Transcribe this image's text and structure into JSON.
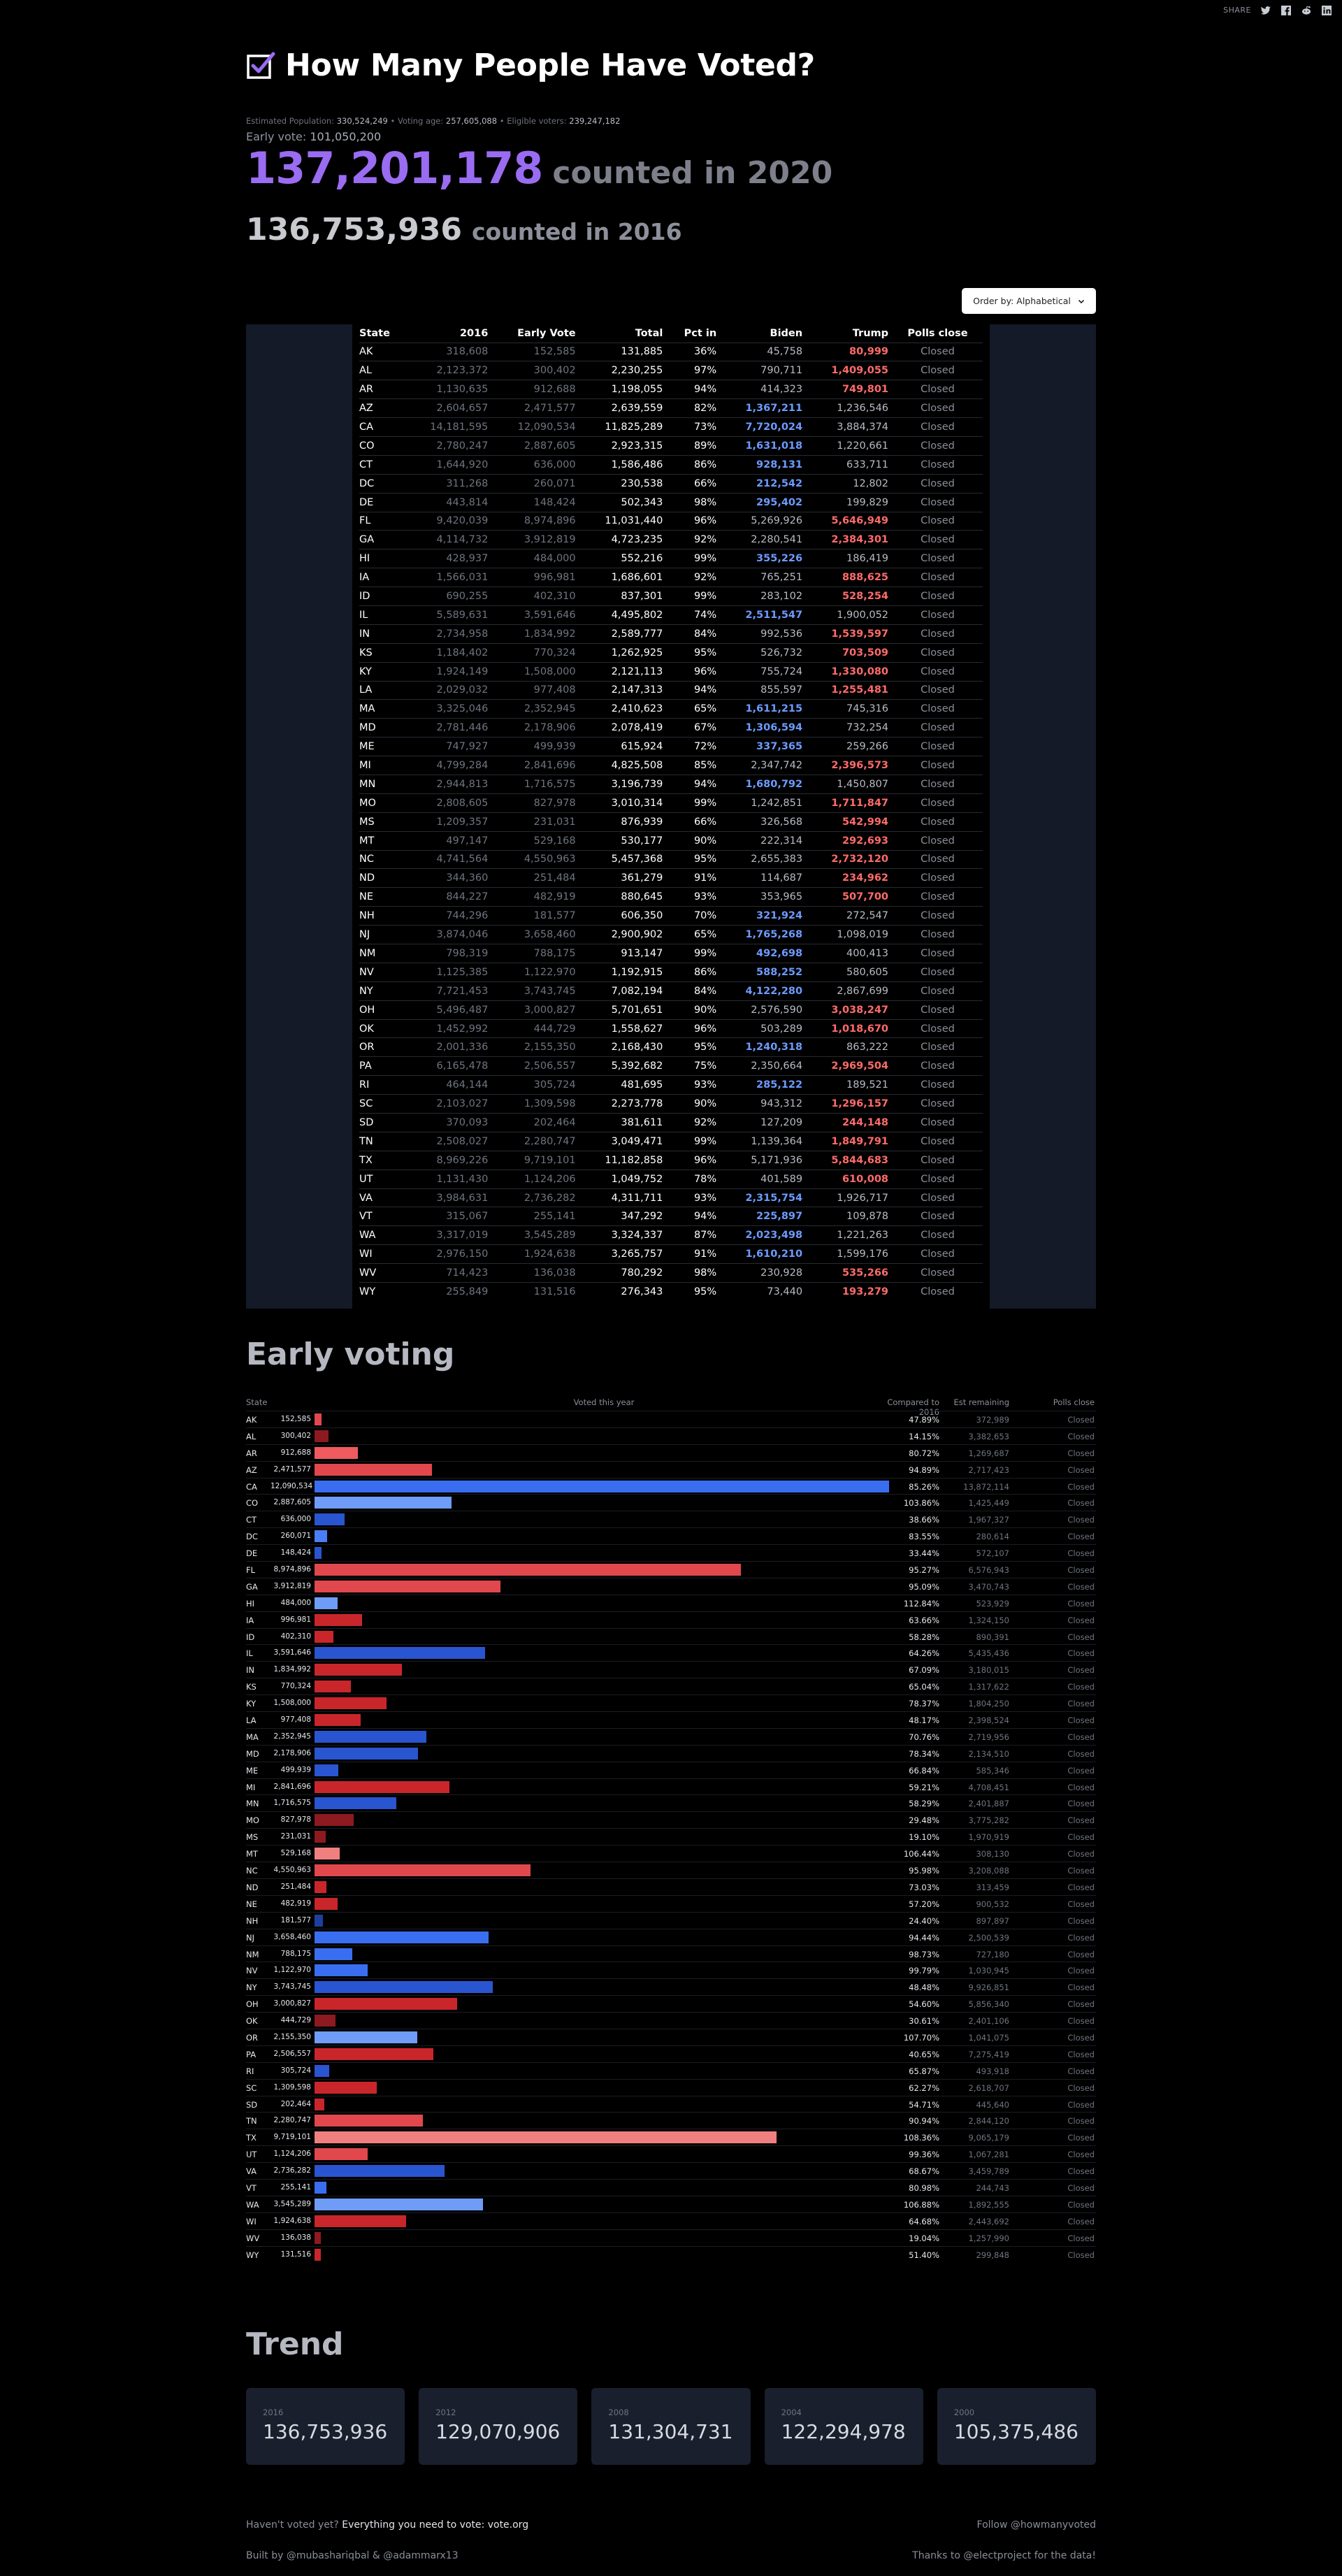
{
  "share": {
    "label": "SHARE",
    "icons": [
      "twitter-icon",
      "facebook-icon",
      "reddit-icon",
      "linkedin-icon"
    ]
  },
  "title": "How Many People Have Voted?",
  "estimates": {
    "pop_label": "Estimated Population:",
    "pop": "330,524,249",
    "age_label": "Voting age:",
    "age": "257,605,088",
    "elig_label": "Eligible voters:",
    "elig": "239,247,182"
  },
  "early_vote": {
    "label": "Early vote:",
    "value": "101,050,200"
  },
  "count_2020": {
    "number": "137,201,178",
    "label": "counted in 2020"
  },
  "count_2016": {
    "number": "136,753,936",
    "label": "counted in 2016"
  },
  "order_by": "Order by: Alphabetical",
  "colors": {
    "accent": "#9a6cf2",
    "biden": "#6d9bff",
    "trump": "#ff6b6b",
    "panel": "#141a27"
  },
  "table": {
    "headers": [
      "State",
      "2016",
      "Early Vote",
      "Total",
      "Pct in",
      "Biden",
      "Trump",
      "Polls close"
    ],
    "rows": [
      [
        "AK",
        "318,608",
        "152,585",
        "131,885",
        "36%",
        "45,758",
        "80,999",
        "Closed",
        "T"
      ],
      [
        "AL",
        "2,123,372",
        "300,402",
        "2,230,255",
        "97%",
        "790,711",
        "1,409,055",
        "Closed",
        "T"
      ],
      [
        "AR",
        "1,130,635",
        "912,688",
        "1,198,055",
        "94%",
        "414,323",
        "749,801",
        "Closed",
        "T"
      ],
      [
        "AZ",
        "2,604,657",
        "2,471,577",
        "2,639,559",
        "82%",
        "1,367,211",
        "1,236,546",
        "Closed",
        "B"
      ],
      [
        "CA",
        "14,181,595",
        "12,090,534",
        "11,825,289",
        "73%",
        "7,720,024",
        "3,884,374",
        "Closed",
        "B"
      ],
      [
        "CO",
        "2,780,247",
        "2,887,605",
        "2,923,315",
        "89%",
        "1,631,018",
        "1,220,661",
        "Closed",
        "B"
      ],
      [
        "CT",
        "1,644,920",
        "636,000",
        "1,586,486",
        "86%",
        "928,131",
        "633,711",
        "Closed",
        "B"
      ],
      [
        "DC",
        "311,268",
        "260,071",
        "230,538",
        "66%",
        "212,542",
        "12,802",
        "Closed",
        "B"
      ],
      [
        "DE",
        "443,814",
        "148,424",
        "502,343",
        "98%",
        "295,402",
        "199,829",
        "Closed",
        "B"
      ],
      [
        "FL",
        "9,420,039",
        "8,974,896",
        "11,031,440",
        "96%",
        "5,269,926",
        "5,646,949",
        "Closed",
        "T"
      ],
      [
        "GA",
        "4,114,732",
        "3,912,819",
        "4,723,235",
        "92%",
        "2,280,541",
        "2,384,301",
        "Closed",
        "T"
      ],
      [
        "HI",
        "428,937",
        "484,000",
        "552,216",
        "99%",
        "355,226",
        "186,419",
        "Closed",
        "B"
      ],
      [
        "IA",
        "1,566,031",
        "996,981",
        "1,686,601",
        "92%",
        "765,251",
        "888,625",
        "Closed",
        "T"
      ],
      [
        "ID",
        "690,255",
        "402,310",
        "837,301",
        "99%",
        "283,102",
        "528,254",
        "Closed",
        "T"
      ],
      [
        "IL",
        "5,589,631",
        "3,591,646",
        "4,495,802",
        "74%",
        "2,511,547",
        "1,900,052",
        "Closed",
        "B"
      ],
      [
        "IN",
        "2,734,958",
        "1,834,992",
        "2,589,777",
        "84%",
        "992,536",
        "1,539,597",
        "Closed",
        "T"
      ],
      [
        "KS",
        "1,184,402",
        "770,324",
        "1,262,925",
        "95%",
        "526,732",
        "703,509",
        "Closed",
        "T"
      ],
      [
        "KY",
        "1,924,149",
        "1,508,000",
        "2,121,113",
        "96%",
        "755,724",
        "1,330,080",
        "Closed",
        "T"
      ],
      [
        "LA",
        "2,029,032",
        "977,408",
        "2,147,313",
        "94%",
        "855,597",
        "1,255,481",
        "Closed",
        "T"
      ],
      [
        "MA",
        "3,325,046",
        "2,352,945",
        "2,410,623",
        "65%",
        "1,611,215",
        "745,316",
        "Closed",
        "B"
      ],
      [
        "MD",
        "2,781,446",
        "2,178,906",
        "2,078,419",
        "67%",
        "1,306,594",
        "732,254",
        "Closed",
        "B"
      ],
      [
        "ME",
        "747,927",
        "499,939",
        "615,924",
        "72%",
        "337,365",
        "259,266",
        "Closed",
        "B"
      ],
      [
        "MI",
        "4,799,284",
        "2,841,696",
        "4,825,508",
        "85%",
        "2,347,742",
        "2,396,573",
        "Closed",
        "T"
      ],
      [
        "MN",
        "2,944,813",
        "1,716,575",
        "3,196,739",
        "94%",
        "1,680,792",
        "1,450,807",
        "Closed",
        "B"
      ],
      [
        "MO",
        "2,808,605",
        "827,978",
        "3,010,314",
        "99%",
        "1,242,851",
        "1,711,847",
        "Closed",
        "T"
      ],
      [
        "MS",
        "1,209,357",
        "231,031",
        "876,939",
        "66%",
        "326,568",
        "542,994",
        "Closed",
        "T"
      ],
      [
        "MT",
        "497,147",
        "529,168",
        "530,177",
        "90%",
        "222,314",
        "292,693",
        "Closed",
        "T"
      ],
      [
        "NC",
        "4,741,564",
        "4,550,963",
        "5,457,368",
        "95%",
        "2,655,383",
        "2,732,120",
        "Closed",
        "T"
      ],
      [
        "ND",
        "344,360",
        "251,484",
        "361,279",
        "91%",
        "114,687",
        "234,962",
        "Closed",
        "T"
      ],
      [
        "NE",
        "844,227",
        "482,919",
        "880,645",
        "93%",
        "353,965",
        "507,700",
        "Closed",
        "T"
      ],
      [
        "NH",
        "744,296",
        "181,577",
        "606,350",
        "70%",
        "321,924",
        "272,547",
        "Closed",
        "B"
      ],
      [
        "NJ",
        "3,874,046",
        "3,658,460",
        "2,900,902",
        "65%",
        "1,765,268",
        "1,098,019",
        "Closed",
        "B"
      ],
      [
        "NM",
        "798,319",
        "788,175",
        "913,147",
        "99%",
        "492,698",
        "400,413",
        "Closed",
        "B"
      ],
      [
        "NV",
        "1,125,385",
        "1,122,970",
        "1,192,915",
        "86%",
        "588,252",
        "580,605",
        "Closed",
        "B"
      ],
      [
        "NY",
        "7,721,453",
        "3,743,745",
        "7,082,194",
        "84%",
        "4,122,280",
        "2,867,699",
        "Closed",
        "B"
      ],
      [
        "OH",
        "5,496,487",
        "3,000,827",
        "5,701,651",
        "90%",
        "2,576,590",
        "3,038,247",
        "Closed",
        "T"
      ],
      [
        "OK",
        "1,452,992",
        "444,729",
        "1,558,627",
        "96%",
        "503,289",
        "1,018,670",
        "Closed",
        "T"
      ],
      [
        "OR",
        "2,001,336",
        "2,155,350",
        "2,168,430",
        "95%",
        "1,240,318",
        "863,222",
        "Closed",
        "B"
      ],
      [
        "PA",
        "6,165,478",
        "2,506,557",
        "5,392,682",
        "75%",
        "2,350,664",
        "2,969,504",
        "Closed",
        "T"
      ],
      [
        "RI",
        "464,144",
        "305,724",
        "481,695",
        "93%",
        "285,122",
        "189,521",
        "Closed",
        "B"
      ],
      [
        "SC",
        "2,103,027",
        "1,309,598",
        "2,273,778",
        "90%",
        "943,312",
        "1,296,157",
        "Closed",
        "T"
      ],
      [
        "SD",
        "370,093",
        "202,464",
        "381,611",
        "92%",
        "127,209",
        "244,148",
        "Closed",
        "T"
      ],
      [
        "TN",
        "2,508,027",
        "2,280,747",
        "3,049,471",
        "99%",
        "1,139,364",
        "1,849,791",
        "Closed",
        "T"
      ],
      [
        "TX",
        "8,969,226",
        "9,719,101",
        "11,182,858",
        "96%",
        "5,171,936",
        "5,844,683",
        "Closed",
        "T"
      ],
      [
        "UT",
        "1,131,430",
        "1,124,206",
        "1,049,752",
        "78%",
        "401,589",
        "610,008",
        "Closed",
        "T"
      ],
      [
        "VA",
        "3,984,631",
        "2,736,282",
        "4,311,711",
        "93%",
        "2,315,754",
        "1,926,717",
        "Closed",
        "B"
      ],
      [
        "VT",
        "315,067",
        "255,141",
        "347,292",
        "94%",
        "225,897",
        "109,878",
        "Closed",
        "B"
      ],
      [
        "WA",
        "3,317,019",
        "3,545,289",
        "3,324,337",
        "87%",
        "2,023,498",
        "1,221,263",
        "Closed",
        "B"
      ],
      [
        "WI",
        "2,976,150",
        "1,924,638",
        "3,265,757",
        "91%",
        "1,610,210",
        "1,599,176",
        "Closed",
        "B"
      ],
      [
        "WV",
        "714,423",
        "136,038",
        "780,292",
        "98%",
        "230,928",
        "535,266",
        "Closed",
        "T"
      ],
      [
        "WY",
        "255,849",
        "131,516",
        "276,343",
        "95%",
        "73,440",
        "193,279",
        "Closed",
        "T"
      ]
    ]
  },
  "early_voting": {
    "title": "Early voting",
    "headers": {
      "state": "State",
      "voted": "Voted this year",
      "compared": "Compared to 2016",
      "remaining": "Est remaining",
      "polls": "Polls close"
    },
    "rows": [
      [
        "AK",
        "152,585",
        152585,
        "47.89%",
        "372,989",
        "Closed",
        "#e0484d"
      ],
      [
        "AL",
        "300,402",
        300402,
        "14.15%",
        "3,382,653",
        "Closed",
        "#8c1a20"
      ],
      [
        "AR",
        "912,688",
        912688,
        "80.72%",
        "1,269,687",
        "Closed",
        "#ef5a5e"
      ],
      [
        "AZ",
        "2,471,577",
        2471577,
        "94.89%",
        "2,717,423",
        "Closed",
        "#e0484d"
      ],
      [
        "CA",
        "12,090,534",
        12090534,
        "85.26%",
        "13,872,114",
        "Closed",
        "#3a6ef0"
      ],
      [
        "CO",
        "2,887,605",
        2887605,
        "103.86%",
        "1,425,449",
        "Closed",
        "#6e9cf6"
      ],
      [
        "CT",
        "636,000",
        636000,
        "38.66%",
        "1,967,327",
        "Closed",
        "#2a55d0"
      ],
      [
        "DC",
        "260,071",
        260071,
        "83.55%",
        "280,614",
        "Closed",
        "#4a7ef5"
      ],
      [
        "DE",
        "148,424",
        148424,
        "33.44%",
        "572,107",
        "Closed",
        "#2a55d0"
      ],
      [
        "FL",
        "8,974,896",
        8974896,
        "95.27%",
        "6,576,943",
        "Closed",
        "#e0484d"
      ],
      [
        "GA",
        "3,912,819",
        3912819,
        "95.09%",
        "3,470,743",
        "Closed",
        "#e0484d"
      ],
      [
        "HI",
        "484,000",
        484000,
        "112.84%",
        "523,929",
        "Closed",
        "#6e9cf6"
      ],
      [
        "IA",
        "996,981",
        996981,
        "63.66%",
        "1,324,150",
        "Closed",
        "#c9262b"
      ],
      [
        "ID",
        "402,310",
        402310,
        "58.28%",
        "890,391",
        "Closed",
        "#c9262b"
      ],
      [
        "IL",
        "3,591,646",
        3591646,
        "64.26%",
        "5,435,436",
        "Closed",
        "#2a55d0"
      ],
      [
        "IN",
        "1,834,992",
        1834992,
        "67.09%",
        "3,180,015",
        "Closed",
        "#c9262b"
      ],
      [
        "KS",
        "770,324",
        770324,
        "65.04%",
        "1,317,622",
        "Closed",
        "#c9262b"
      ],
      [
        "KY",
        "1,508,000",
        1508000,
        "78.37%",
        "1,804,250",
        "Closed",
        "#c9262b"
      ],
      [
        "LA",
        "977,408",
        977408,
        "48.17%",
        "2,398,524",
        "Closed",
        "#c9262b"
      ],
      [
        "MA",
        "2,352,945",
        2352945,
        "70.76%",
        "2,719,956",
        "Closed",
        "#2a55d0"
      ],
      [
        "MD",
        "2,178,906",
        2178906,
        "78.34%",
        "2,134,510",
        "Closed",
        "#2a55d0"
      ],
      [
        "ME",
        "499,939",
        499939,
        "66.84%",
        "585,346",
        "Closed",
        "#2a55d0"
      ],
      [
        "MI",
        "2,841,696",
        2841696,
        "59.21%",
        "4,708,451",
        "Closed",
        "#c9262b"
      ],
      [
        "MN",
        "1,716,575",
        1716575,
        "58.29%",
        "2,401,887",
        "Closed",
        "#2a55d0"
      ],
      [
        "MO",
        "827,978",
        827978,
        "29.48%",
        "3,775,282",
        "Closed",
        "#8c1a20"
      ],
      [
        "MS",
        "231,031",
        231031,
        "19.10%",
        "1,970,919",
        "Closed",
        "#8c1a20"
      ],
      [
        "MT",
        "529,168",
        529168,
        "106.44%",
        "308,130",
        "Closed",
        "#f08080"
      ],
      [
        "NC",
        "4,550,963",
        4550963,
        "95.98%",
        "3,208,088",
        "Closed",
        "#e0484d"
      ],
      [
        "ND",
        "251,484",
        251484,
        "73.03%",
        "313,459",
        "Closed",
        "#c9262b"
      ],
      [
        "NE",
        "482,919",
        482919,
        "57.20%",
        "900,532",
        "Closed",
        "#c9262b"
      ],
      [
        "NH",
        "181,577",
        181577,
        "24.40%",
        "897,897",
        "Closed",
        "#1f3fa0"
      ],
      [
        "NJ",
        "3,658,460",
        3658460,
        "94.44%",
        "2,500,539",
        "Closed",
        "#3a6ef0"
      ],
      [
        "NM",
        "788,175",
        788175,
        "98.73%",
        "727,180",
        "Closed",
        "#3a6ef0"
      ],
      [
        "NV",
        "1,122,970",
        1122970,
        "99.79%",
        "1,030,945",
        "Closed",
        "#3a6ef0"
      ],
      [
        "NY",
        "3,743,745",
        3743745,
        "48.48%",
        "9,926,851",
        "Closed",
        "#2a55d0"
      ],
      [
        "OH",
        "3,000,827",
        3000827,
        "54.60%",
        "5,856,340",
        "Closed",
        "#c9262b"
      ],
      [
        "OK",
        "444,729",
        444729,
        "30.61%",
        "2,401,106",
        "Closed",
        "#8c1a20"
      ],
      [
        "OR",
        "2,155,350",
        2155350,
        "107.70%",
        "1,041,075",
        "Closed",
        "#6e9cf6"
      ],
      [
        "PA",
        "2,506,557",
        2506557,
        "40.65%",
        "7,275,419",
        "Closed",
        "#c9262b"
      ],
      [
        "RI",
        "305,724",
        305724,
        "65.87%",
        "493,918",
        "Closed",
        "#2a55d0"
      ],
      [
        "SC",
        "1,309,598",
        1309598,
        "62.27%",
        "2,618,707",
        "Closed",
        "#c9262b"
      ],
      [
        "SD",
        "202,464",
        202464,
        "54.71%",
        "445,640",
        "Closed",
        "#c9262b"
      ],
      [
        "TN",
        "2,280,747",
        2280747,
        "90.94%",
        "2,844,120",
        "Closed",
        "#e0484d"
      ],
      [
        "TX",
        "9,719,101",
        9719101,
        "108.36%",
        "9,065,179",
        "Closed",
        "#f08080"
      ],
      [
        "UT",
        "1,124,206",
        1124206,
        "99.36%",
        "1,067,281",
        "Closed",
        "#e0484d"
      ],
      [
        "VA",
        "2,736,282",
        2736282,
        "68.67%",
        "3,459,789",
        "Closed",
        "#2a55d0"
      ],
      [
        "VT",
        "255,141",
        255141,
        "80.98%",
        "244,743",
        "Closed",
        "#3a6ef0"
      ],
      [
        "WA",
        "3,545,289",
        3545289,
        "106.88%",
        "1,892,555",
        "Closed",
        "#6e9cf6"
      ],
      [
        "WI",
        "1,924,638",
        1924638,
        "64.68%",
        "2,443,692",
        "Closed",
        "#c9262b"
      ],
      [
        "WV",
        "136,038",
        136038,
        "19.04%",
        "1,257,990",
        "Closed",
        "#8c1a20"
      ],
      [
        "WY",
        "131,516",
        131516,
        "51.40%",
        "299,848",
        "Closed",
        "#c9262b"
      ]
    ]
  },
  "trend": {
    "title": "Trend",
    "cards": [
      {
        "year": "2016",
        "count": "136,753,936"
      },
      {
        "year": "2012",
        "count": "129,070,906"
      },
      {
        "year": "2008",
        "count": "131,304,731"
      },
      {
        "year": "2004",
        "count": "122,294,978"
      },
      {
        "year": "2000",
        "count": "105,375,486"
      }
    ]
  },
  "footer": {
    "not_voted": "Haven't voted yet?",
    "vote_link": "Everything you need to vote: vote.org",
    "follow": "Follow @howmanyvoted",
    "built_by": "Built by @mubashariqbal & @adammarx13",
    "thanks": "Thanks to @electproject for the data!"
  }
}
